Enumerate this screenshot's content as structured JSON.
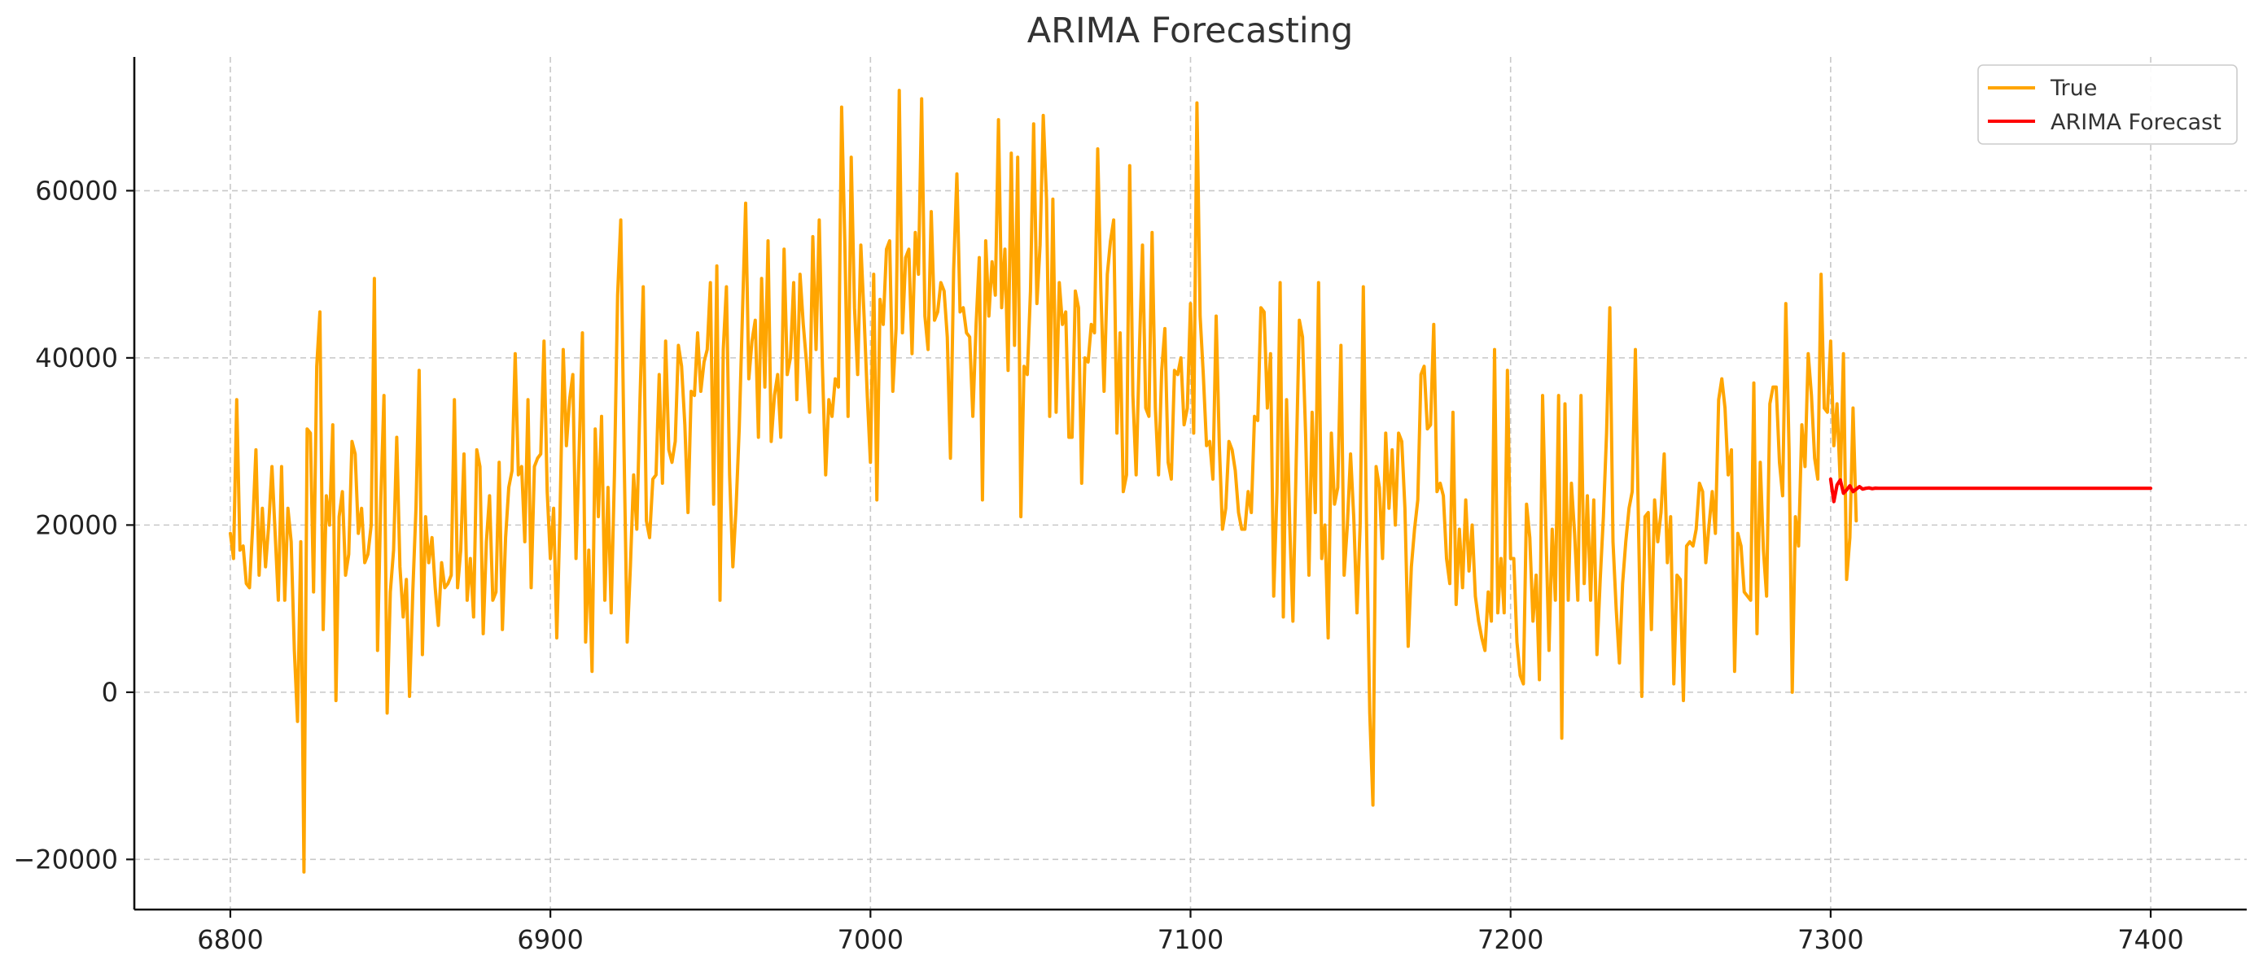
{
  "chart_data": {
    "type": "line",
    "title": "ARIMA Forecasting",
    "xlabel": "",
    "ylabel": "",
    "xlim": [
      6770,
      7430
    ],
    "ylim": [
      -26000,
      76000
    ],
    "xticks": [
      6800,
      6900,
      7000,
      7100,
      7200,
      7300,
      7400
    ],
    "yticks": [
      -20000,
      0,
      20000,
      40000,
      60000
    ],
    "xtick_labels": [
      "6800",
      "6900",
      "7000",
      "7100",
      "7200",
      "7300",
      "7400"
    ],
    "ytick_labels": [
      "−20000",
      "0",
      "20000",
      "40000",
      "60000"
    ],
    "grid": true,
    "legend_position": "top-right",
    "series": [
      {
        "name": "True",
        "color": "#ffa500",
        "x_start": 6800,
        "x_step": 1,
        "values": [
          19000,
          16000,
          35000,
          17000,
          17500,
          13000,
          12500,
          20000,
          29000,
          14000,
          22000,
          15000,
          20000,
          27000,
          19000,
          11000,
          27000,
          11000,
          22000,
          18000,
          5000,
          -3500,
          18000,
          -21500,
          31500,
          31000,
          12000,
          39000,
          45500,
          7500,
          23500,
          20000,
          32000,
          -1000,
          21000,
          24000,
          14000,
          16500,
          30000,
          28500,
          19000,
          22000,
          15500,
          16500,
          20000,
          49500,
          5000,
          23000,
          35500,
          -2500,
          12000,
          17000,
          30500,
          15000,
          9000,
          13500,
          -500,
          12000,
          22000,
          38500,
          4500,
          21000,
          15500,
          18500,
          12500,
          8000,
          15500,
          12500,
          13000,
          14000,
          35000,
          12500,
          17000,
          28500,
          11000,
          16000,
          9000,
          29000,
          27000,
          7000,
          18000,
          23500,
          11000,
          12000,
          27500,
          7500,
          18500,
          24500,
          26500,
          40500,
          26000,
          27000,
          18000,
          35000,
          12500,
          27000,
          28000,
          28500,
          42000,
          24000,
          16000,
          22000,
          6500,
          21000,
          41000,
          29500,
          35000,
          38000,
          16000,
          29000,
          43000,
          6000,
          17000,
          2500,
          31500,
          21000,
          33000,
          11000,
          24500,
          9500,
          26000,
          47500,
          56500,
          29000,
          6000,
          15000,
          26000,
          19500,
          35000,
          48500,
          20500,
          18500,
          25500,
          26000,
          38000,
          25000,
          42000,
          29000,
          27500,
          30000,
          41500,
          39000,
          32000,
          21500,
          36000,
          35500,
          43000,
          36000,
          39500,
          41000,
          49000,
          22500,
          51000,
          11000,
          41000,
          48500,
          26000,
          15000,
          22000,
          31500,
          45000,
          58500,
          37500,
          42000,
          44500,
          30500,
          49500,
          36500,
          54000,
          30000,
          35500,
          38000,
          30500,
          53000,
          38000,
          40000,
          49000,
          35000,
          50000,
          44000,
          39500,
          33500,
          54500,
          41000,
          56500,
          39000,
          26000,
          35000,
          33000,
          37500,
          36500,
          70000,
          53500,
          33000,
          64000,
          46000,
          38000,
          53500,
          45000,
          35500,
          27500,
          50000,
          23000,
          47000,
          44000,
          53000,
          54000,
          36000,
          43500,
          72000,
          43000,
          52000,
          53000,
          40500,
          55000,
          50000,
          71000,
          45000,
          41000,
          57500,
          44500,
          45500,
          49000,
          48000,
          42500,
          28000,
          50500,
          62000,
          45500,
          46000,
          43000,
          42500,
          33000,
          44000,
          52000,
          23000,
          54000,
          45000,
          51500,
          47500,
          68500,
          46000,
          53000,
          38500,
          64500,
          41500,
          64000,
          21000,
          39000,
          38000,
          48000,
          68000,
          46500,
          53500,
          69000,
          59000,
          33000,
          59000,
          33500,
          49000,
          44000,
          45500,
          30500,
          30500,
          48000,
          46000,
          25000,
          40000,
          39500,
          44000,
          43000,
          65000,
          48000,
          36000,
          50000,
          54000,
          56500,
          31000,
          43000,
          24000,
          26000,
          63000,
          35500,
          26000,
          40500,
          53500,
          34000,
          33000,
          55000,
          34000,
          26000,
          38500,
          43500,
          27500,
          25500,
          38500,
          38000,
          40000,
          32000,
          34000,
          46500,
          31000,
          70500,
          45000,
          38000,
          29500,
          30000,
          25500,
          45000,
          29500,
          19500,
          22000,
          30000,
          29000,
          26500,
          21500,
          19500,
          19500,
          24000,
          21500,
          33000,
          32500,
          46000,
          45500,
          34000,
          40500,
          11500,
          24000,
          49000,
          9000,
          35000,
          20000,
          8500,
          27500,
          44500,
          42500,
          30500,
          14000,
          33500,
          21500,
          49000,
          16000,
          20000,
          6500,
          31000,
          22500,
          24500,
          41500,
          14000,
          20000,
          28500,
          21000,
          9500,
          20000,
          48500,
          19500,
          -2500,
          -13500,
          27000,
          24500,
          16000,
          31000,
          22000,
          29000,
          20000,
          31000,
          30000,
          22000,
          5500,
          15000,
          19500,
          23000,
          38000,
          39000,
          31500,
          32000,
          44000,
          24000,
          25000,
          23500,
          16000,
          13000,
          33500,
          10500,
          19500,
          12500,
          23000,
          14500,
          20000,
          11500,
          8500,
          6500,
          5000,
          12000,
          8500,
          41000,
          9500,
          16000,
          9500,
          38500,
          16000,
          16000,
          6000,
          2000,
          1000,
          22500,
          18500,
          8500,
          14000,
          1500,
          35500,
          20000,
          5000,
          19500,
          11000,
          35500,
          -5500,
          34500,
          11000,
          25000,
          19000,
          11000,
          35500,
          13000,
          23500,
          11000,
          23000,
          4500,
          13500,
          21000,
          31000,
          46000,
          18000,
          10000,
          3500,
          13000,
          18000,
          22000,
          24000,
          41000,
          19000,
          -500,
          21000,
          21500,
          7500,
          23000,
          18000,
          21500,
          28500,
          15500,
          21000,
          1000,
          14000,
          13500,
          -1000,
          17500,
          18000,
          17500,
          19500,
          25000,
          24000,
          15500,
          20000,
          24000,
          19000,
          35000,
          37500,
          34000,
          26000,
          29000,
          2500,
          19000,
          17500,
          12000,
          11500,
          11000,
          37000,
          7000,
          27500,
          17000,
          11500,
          34500,
          36500,
          36500,
          27500,
          23500,
          46500,
          29000,
          0,
          21000,
          17500,
          32000,
          27000,
          40500,
          35500,
          28000,
          25500,
          50000,
          34000,
          33500,
          42000,
          29500,
          34500,
          25000,
          40500,
          13500,
          18500,
          34000,
          20500
        ]
      },
      {
        "name": "ARIMA Forecast",
        "color": "#ff0000",
        "x_start": 7300,
        "x_step": 1,
        "values": [
          25500,
          22800,
          24800,
          25400,
          23800,
          24200,
          24700,
          24000,
          24300,
          24600,
          24300,
          24400,
          24450,
          24350,
          24420,
          24400,
          24400,
          24400,
          24400,
          24400,
          24400,
          24400,
          24400,
          24400,
          24400,
          24400,
          24400,
          24400,
          24400,
          24400,
          24400,
          24400,
          24400,
          24400,
          24400,
          24400,
          24400,
          24400,
          24400,
          24400,
          24400,
          24400,
          24400,
          24400,
          24400,
          24400,
          24400,
          24400,
          24400,
          24400,
          24400,
          24400,
          24400,
          24400,
          24400,
          24400,
          24400,
          24400,
          24400,
          24400,
          24400,
          24400,
          24400,
          24400,
          24400,
          24400,
          24400,
          24400,
          24400,
          24400,
          24400,
          24400,
          24400,
          24400,
          24400,
          24400,
          24400,
          24400,
          24400,
          24400,
          24400,
          24400,
          24400,
          24400,
          24400,
          24400,
          24400,
          24400,
          24400,
          24400,
          24400,
          24400,
          24400,
          24400,
          24400,
          24400,
          24400,
          24400,
          24400,
          24400,
          24400
        ]
      }
    ]
  }
}
